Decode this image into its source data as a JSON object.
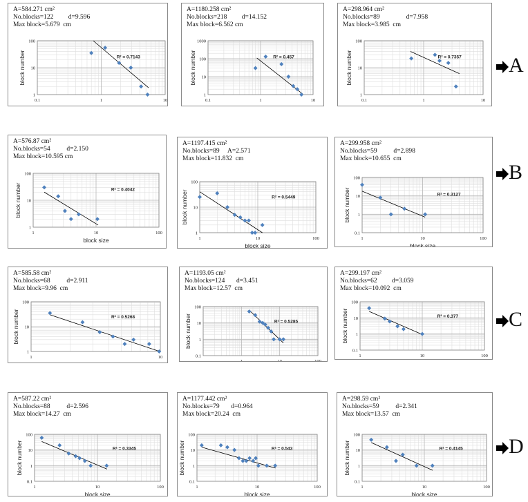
{
  "row_labels": [
    "A",
    "B",
    "C",
    "D"
  ],
  "chart_data": [
    {
      "type": "scatter",
      "row": "A",
      "annotation": [
        "A=584.271 cm²",
        "No.blocks=122         d=9.596",
        "Max block=5.679  cm"
      ],
      "xlabel": "block size",
      "ylabel": "block number",
      "log_x": true,
      "log_y": true,
      "xlim": [
        0.1,
        10
      ],
      "ylim": [
        1,
        100
      ],
      "xticks": [
        "0.1",
        "1",
        "10"
      ],
      "yticks": [
        "1",
        "10",
        "100"
      ],
      "x": [
        0.7,
        1.15,
        1.9,
        2.9,
        4.2,
        5.3
      ],
      "y": [
        35,
        55,
        15,
        10,
        2,
        1
      ],
      "trendline": {
        "x": [
          0.75,
          5.5
        ],
        "y": [
          100,
          1.8
        ]
      },
      "r2": "R² = 0.7143"
    },
    {
      "type": "scatter",
      "row": "A",
      "annotation": [
        "A=1180.258 cm²",
        "No.blocks=218         d=14.152",
        "Max block=6.562 cm"
      ],
      "xlabel": "block size",
      "ylabel": "block number",
      "log_x": true,
      "log_y": true,
      "xlim": [
        0.1,
        10
      ],
      "ylim": [
        1,
        1000
      ],
      "xticks": [
        "0.1",
        "1",
        "10"
      ],
      "yticks": [
        "1",
        "10",
        "100",
        "1000"
      ],
      "x": [
        0.8,
        1.25,
        2.5,
        3.4,
        4.2,
        5.0,
        6.0
      ],
      "y": [
        30,
        130,
        50,
        10,
        3,
        2,
        1
      ],
      "trendline": {
        "x": [
          0.85,
          6.3
        ],
        "y": [
          110,
          1.1
        ]
      },
      "r2": "R² = 0.457"
    },
    {
      "type": "scatter",
      "row": "A",
      "annotation": [
        "A=298.964 cm²",
        "No.blocks=89                d=7.958",
        "Max block=3.985  cm"
      ],
      "xlabel": "block size",
      "ylabel": "block number",
      "log_x": true,
      "log_y": true,
      "xlim": [
        0.1,
        10
      ],
      "ylim": [
        1,
        100
      ],
      "xticks": [
        "0.1",
        "1",
        "10"
      ],
      "yticks": [
        "1",
        "10",
        "100"
      ],
      "x": [
        0.62,
        1.55,
        1.85,
        2.6,
        3.5
      ],
      "y": [
        22,
        30,
        18,
        15,
        2
      ],
      "trendline": {
        "x": [
          0.6,
          4.0
        ],
        "y": [
          40,
          6
        ]
      },
      "r2": "R² = 0.7357"
    },
    {
      "type": "scatter",
      "row": "B",
      "annotation": [
        "A=576.87 cm²",
        "No.blocks=54          d=2.150",
        "Max block=10.595 cm"
      ],
      "xlabel": "block size",
      "ylabel": "block number",
      "log_x": true,
      "log_y": true,
      "xlim": [
        1,
        100
      ],
      "ylim": [
        1,
        100
      ],
      "xticks": [
        "1",
        "10",
        "100"
      ],
      "yticks": [
        "1",
        "10",
        "100"
      ],
      "x": [
        1.5,
        2.5,
        3.2,
        4,
        5.3,
        10.5
      ],
      "y": [
        30,
        14,
        4,
        2,
        3,
        2
      ],
      "trendline": {
        "x": [
          1.5,
          10.8
        ],
        "y": [
          20,
          1.2
        ]
      },
      "r2": "R² = 0.4042"
    },
    {
      "type": "scatter",
      "row": "B",
      "annotation": [
        "A=1197.415 cm²",
        "No.blocks=89     A=2.571",
        "Max block=11.832  cm"
      ],
      "xlabel": "block size",
      "ylabel": "block number",
      "log_x": true,
      "log_y": true,
      "xlim": [
        1,
        100
      ],
      "ylim": [
        1,
        100
      ],
      "xticks": [
        "1",
        "10",
        "100"
      ],
      "yticks": [
        "1",
        "10",
        "100"
      ],
      "x": [
        1,
        2,
        3,
        4,
        5,
        6,
        7,
        8,
        9,
        12
      ],
      "y": [
        25,
        35,
        10,
        5,
        4,
        3,
        3,
        1,
        1,
        2
      ],
      "trendline": {
        "x": [
          1,
          12
        ],
        "y": [
          40,
          1
        ]
      },
      "r2": "R² = 0.5449"
    },
    {
      "type": "scatter",
      "row": "B",
      "annotation": [
        "A=299.958 cm²",
        "No.blocks=59          d=2.898",
        "Max block=10.655  cm"
      ],
      "xlabel": "block size",
      "ylabel": "block number",
      "log_x": true,
      "log_y": true,
      "xlim": [
        1,
        100
      ],
      "ylim": [
        0.1,
        100
      ],
      "xticks": [
        "1",
        "10",
        "100"
      ],
      "yticks": [
        "0.1",
        "1",
        "10",
        "100"
      ],
      "x": [
        1,
        2,
        3,
        5,
        11
      ],
      "y": [
        40,
        8,
        1,
        2,
        1
      ],
      "trendline": {
        "x": [
          1,
          11
        ],
        "y": [
          18,
          0.7
        ]
      },
      "r2": "R² = 0.3127"
    },
    {
      "type": "scatter",
      "row": "C",
      "annotation": [
        "A=585.58 cm²",
        "No.blocks=68          d=2.911",
        "Max block=9.96  cm"
      ],
      "xlabel": "block size",
      "ylabel": "block number",
      "log_x": true,
      "log_y": true,
      "xlim": [
        1,
        10
      ],
      "ylim": [
        1,
        100
      ],
      "xticks": [
        "1",
        "10"
      ],
      "yticks": [
        "1",
        "10",
        "100"
      ],
      "x": [
        1.4,
        2.5,
        3.4,
        4.3,
        5.3,
        6.2,
        8.2,
        9.8
      ],
      "y": [
        35,
        15,
        6,
        4,
        2,
        3,
        2,
        1
      ],
      "trendline": {
        "x": [
          1.4,
          9.9
        ],
        "y": [
          30,
          1
        ]
      },
      "r2": "R² = 0.5268"
    },
    {
      "type": "scatter",
      "row": "C",
      "annotation": [
        "A=1193.05 cm²",
        "No.blocks=124       d=3.451",
        "Max block=12.57  cm"
      ],
      "xlabel": "block size",
      "ylabel": "block number",
      "log_x": true,
      "log_y": true,
      "xlim": [
        0.1,
        100
      ],
      "ylim": [
        0.1,
        100
      ],
      "xticks": [
        "1",
        "10",
        "100"
      ],
      "yticks": [
        "0.1",
        "1",
        "10",
        "100"
      ],
      "x": [
        1.6,
        2.3,
        3,
        3.6,
        4.2,
        5,
        6,
        7,
        10,
        12.5
      ],
      "y": [
        50,
        30,
        12,
        10,
        8,
        5,
        3,
        1,
        1,
        1
      ],
      "trendline": {
        "x": [
          1.6,
          12.5
        ],
        "y": [
          60,
          0.6
        ]
      },
      "r2": "R² = 0.5285"
    },
    {
      "type": "scatter",
      "row": "C",
      "annotation": [
        "A=299.197 cm²",
        "No.blocks=62         d=3.059",
        "Max block=10.092  cm"
      ],
      "xlabel": "block size",
      "ylabel": "block number",
      "log_x": true,
      "log_y": true,
      "xlim": [
        1,
        100
      ],
      "ylim": [
        0.1,
        100
      ],
      "xticks": [
        "1",
        "10",
        "100"
      ],
      "yticks": [
        "0.1",
        "1",
        "10",
        "100"
      ],
      "x": [
        1.4,
        2.5,
        3,
        4,
        5,
        10
      ],
      "y": [
        40,
        9,
        6,
        3,
        2,
        1
      ],
      "trendline": {
        "x": [
          1.4,
          10.2
        ],
        "y": [
          25,
          0.9
        ]
      },
      "r2": "R² = 0.377"
    },
    {
      "type": "scatter",
      "row": "D",
      "annotation": [
        "A=587.22 cm²",
        "No.blocks=88          d=2.596",
        "Max block=14.27  cm"
      ],
      "xlabel": "block size",
      "ylabel": "block number",
      "log_x": true,
      "log_y": true,
      "xlim": [
        1,
        100
      ],
      "ylim": [
        0.1,
        100
      ],
      "xticks": [
        "1",
        "10",
        "100"
      ],
      "yticks": [
        "0.1",
        "1",
        "10",
        "100"
      ],
      "x": [
        1.3,
        2.5,
        3.5,
        4.5,
        5.2,
        6.3,
        7.8,
        14
      ],
      "y": [
        60,
        20,
        6,
        4,
        3,
        2,
        1,
        1
      ],
      "trendline": {
        "x": [
          1.3,
          14.2
        ],
        "y": [
          35,
          0.6
        ]
      },
      "r2": "R² = 0.3345"
    },
    {
      "type": "scatter",
      "row": "D",
      "annotation": [
        "A=1177.442 cm²",
        "No.blocks=79       d=0.964",
        "Max block=20.24  cm"
      ],
      "xlabel": "block size",
      "ylabel": "block number",
      "log_x": true,
      "log_y": true,
      "xlim": [
        1,
        100
      ],
      "ylim": [
        0.1,
        100
      ],
      "xticks": [
        "1",
        "10",
        "100"
      ],
      "yticks": [
        "0.1",
        "1",
        "10",
        "100"
      ],
      "x": [
        1.2,
        2.5,
        3.2,
        4.2,
        5,
        5.8,
        6.6,
        7.5,
        8.6,
        9.5,
        10.5,
        14.5,
        20
      ],
      "y": [
        20,
        20,
        15,
        10,
        3,
        2,
        2,
        3,
        2,
        3,
        1,
        1,
        1
      ],
      "trendline": {
        "x": [
          1.2,
          20.2
        ],
        "y": [
          15,
          0.7
        ]
      },
      "r2": "R² = 0.543"
    },
    {
      "type": "scatter",
      "row": "D",
      "annotation": [
        "A=298.59 cm²",
        "No.blocks=59          d=2.341",
        "Max block=13.57  cm"
      ],
      "xlabel": "block size",
      "ylabel": "block number",
      "log_x": true,
      "log_y": true,
      "xlim": [
        1,
        100
      ],
      "ylim": [
        0.1,
        100
      ],
      "xticks": [
        "1",
        "10",
        "100"
      ],
      "yticks": [
        "0.1",
        "1",
        "10",
        "100"
      ],
      "x": [
        1.4,
        2.5,
        3.5,
        4.5,
        7.5,
        13.5
      ],
      "y": [
        45,
        15,
        2,
        5,
        1,
        1
      ],
      "trendline": {
        "x": [
          1.4,
          13.6
        ],
        "y": [
          30,
          0.5
        ]
      },
      "r2": "R² = 0.4145"
    }
  ]
}
